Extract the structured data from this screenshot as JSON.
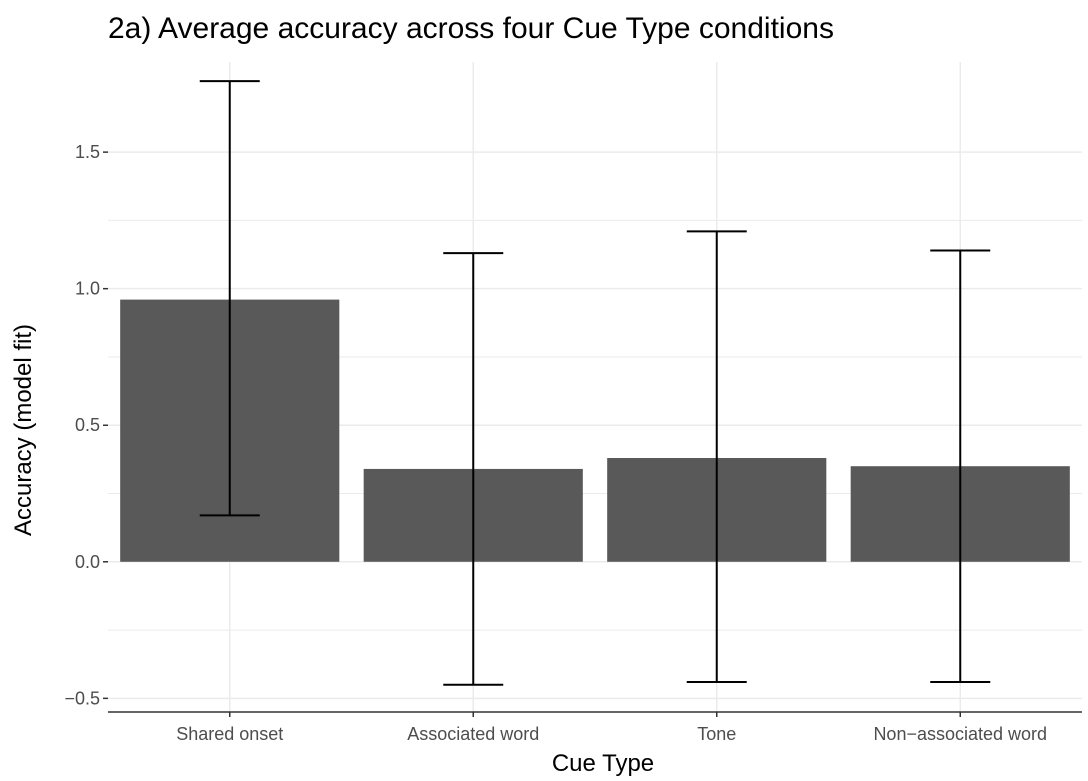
{
  "chart_data": {
    "type": "bar",
    "title": "2a) Average accuracy across four Cue Type conditions",
    "xlabel": "Cue Type",
    "ylabel": "Accuracy (model fit)",
    "categories": [
      "Shared onset",
      "Associated word",
      "Tone",
      "Non−associated word"
    ],
    "values": [
      0.96,
      0.34,
      0.38,
      0.35
    ],
    "error_low": [
      0.17,
      -0.45,
      -0.44,
      -0.44
    ],
    "error_high": [
      1.76,
      1.13,
      1.21,
      1.14
    ],
    "ylim": [
      -0.55,
      1.83
    ],
    "yticks": [
      -0.5,
      0.0,
      0.5,
      1.0,
      1.5
    ],
    "ytick_labels": [
      "−0.5",
      "0.0",
      "0.5",
      "1.0",
      "1.5"
    ],
    "grid": true,
    "bar_color": "#595959",
    "grid_color": "#ebebeb"
  }
}
